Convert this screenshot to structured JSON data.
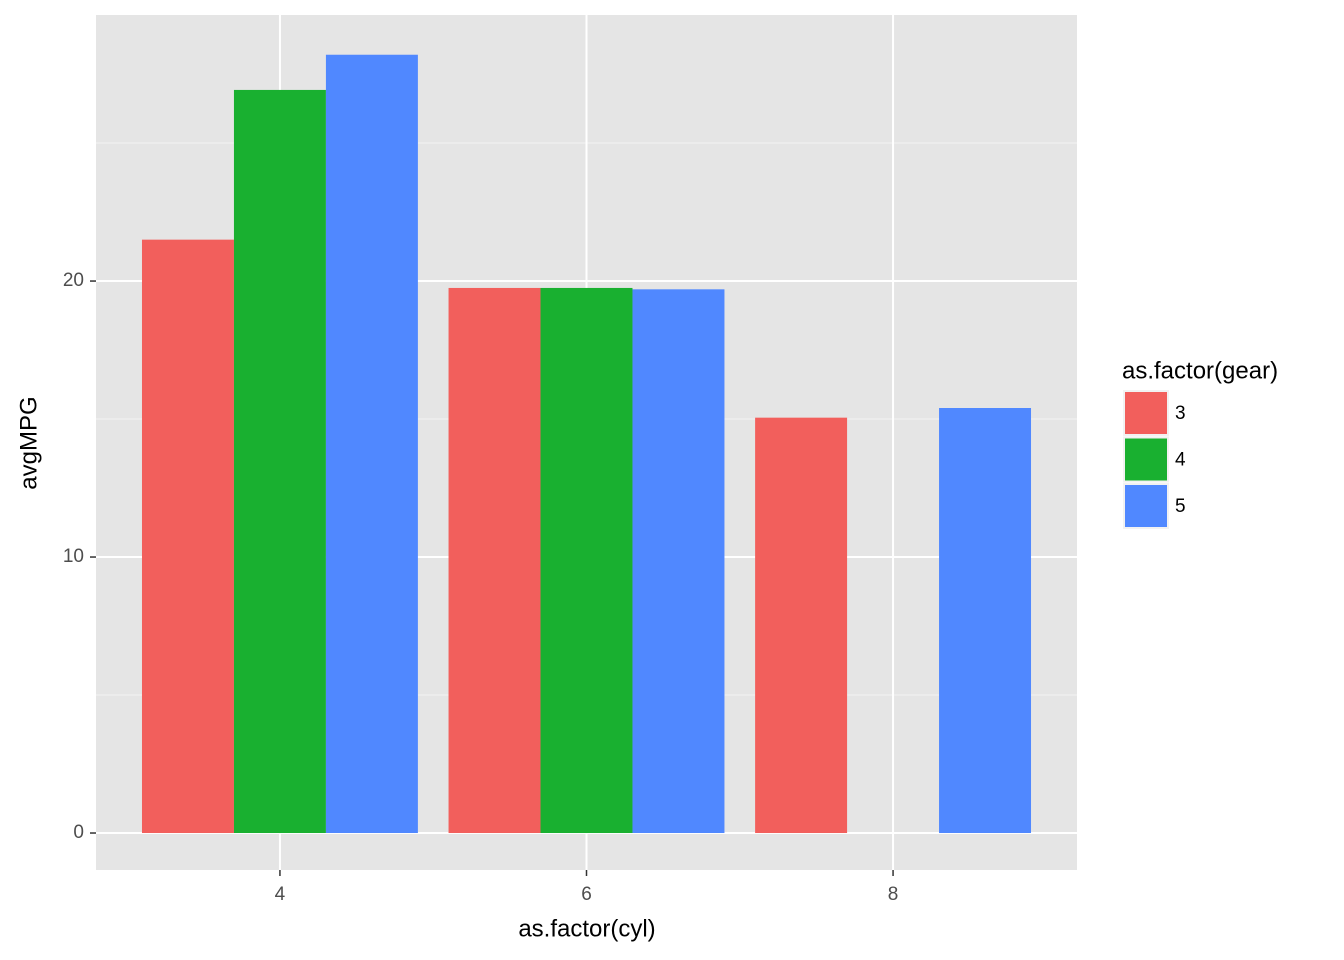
{
  "chart_data": {
    "type": "bar",
    "x_label": "as.factor(cyl)",
    "y_label": "avgMPG",
    "legend_title": "as.factor(gear)",
    "categories": [
      "4",
      "6",
      "8"
    ],
    "series": [
      {
        "name": "3",
        "color": "#F25F5C",
        "values": [
          21.5,
          19.75,
          15.05
        ]
      },
      {
        "name": "4",
        "color": "#19B030",
        "values": [
          26.925,
          19.75,
          null
        ]
      },
      {
        "name": "5",
        "color": "#5088FF",
        "values": [
          28.2,
          19.7,
          15.4
        ]
      }
    ],
    "ylim": [
      -1.34,
      29.64
    ],
    "yticks": [
      0,
      10,
      20
    ],
    "grid": true,
    "legend": "right"
  }
}
